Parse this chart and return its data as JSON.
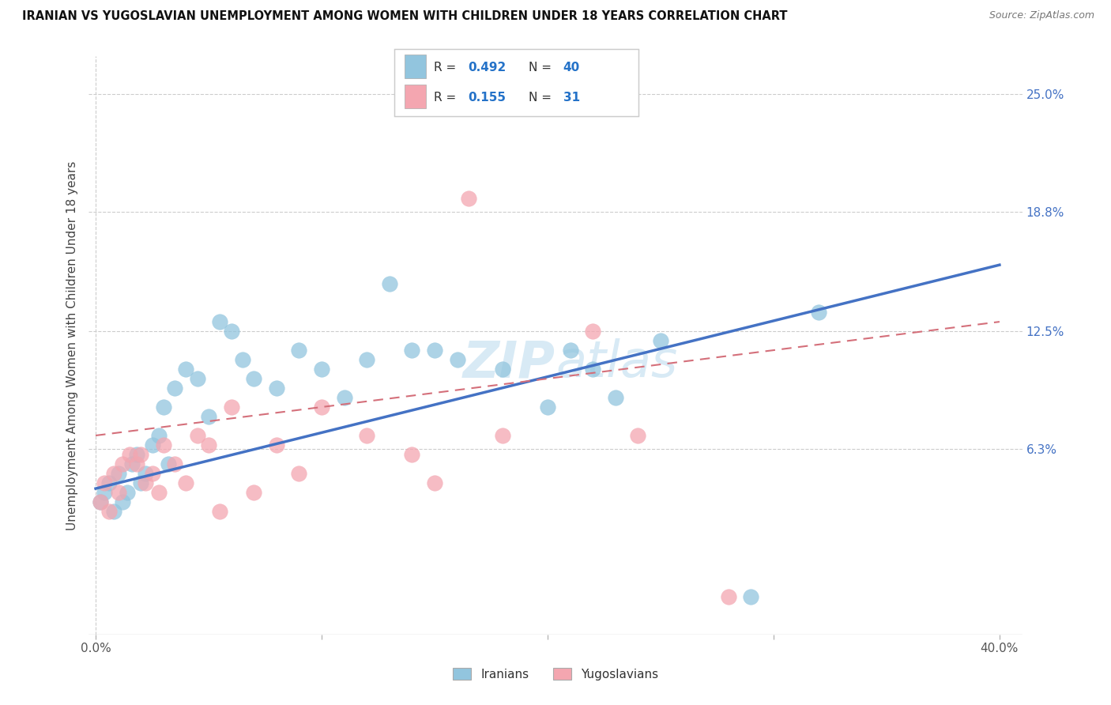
{
  "title": "IRANIAN VS YUGOSLAVIAN UNEMPLOYMENT AMONG WOMEN WITH CHILDREN UNDER 18 YEARS CORRELATION CHART",
  "source": "Source: ZipAtlas.com",
  "ylabel": "Unemployment Among Women with Children Under 18 years",
  "iranian_R": 0.492,
  "iranian_N": 40,
  "yugoslavian_R": 0.155,
  "yugoslavian_N": 31,
  "iranian_color": "#92C5DE",
  "yugoslavian_color": "#F4A6B0",
  "iranian_line_color": "#4472C4",
  "yugoslavian_line_color": "#D46F7A",
  "watermark_color": "#D8EAF5",
  "grid_color": "#CCCCCC",
  "ytick_color": "#4472C4",
  "x_ticks": [
    0,
    10,
    20,
    30,
    40
  ],
  "x_tick_labels": [
    "0.0%",
    "",
    "",
    "",
    "40.0%"
  ],
  "y_ticks": [
    6.3,
    12.5,
    18.8,
    25.0
  ],
  "y_tick_labels": [
    "6.3%",
    "12.5%",
    "18.8%",
    "25.0%"
  ],
  "xlim": [
    -0.3,
    41.0
  ],
  "ylim": [
    -3.5,
    27.0
  ],
  "iran_line_x0": 0.0,
  "iran_line_y0": 4.2,
  "iran_line_x1": 40.0,
  "iran_line_y1": 16.0,
  "yugo_line_x0": 0.0,
  "yugo_line_y0": 7.0,
  "yugo_line_x1": 40.0,
  "yugo_line_y1": 13.0,
  "iranians_x": [
    0.2,
    0.4,
    0.6,
    0.8,
    1.0,
    1.2,
    1.4,
    1.6,
    1.8,
    2.0,
    2.2,
    2.5,
    2.8,
    3.0,
    3.2,
    3.5,
    4.0,
    4.5,
    5.0,
    5.5,
    6.0,
    6.5,
    7.0,
    8.0,
    9.0,
    10.0,
    11.0,
    12.0,
    13.0,
    14.0,
    15.0,
    16.0,
    18.0,
    20.0,
    21.0,
    22.0,
    23.0,
    25.0,
    29.0,
    32.0
  ],
  "iranians_y": [
    3.5,
    4.0,
    4.5,
    3.0,
    5.0,
    3.5,
    4.0,
    5.5,
    6.0,
    4.5,
    5.0,
    6.5,
    7.0,
    8.5,
    5.5,
    9.5,
    10.5,
    10.0,
    8.0,
    13.0,
    12.5,
    11.0,
    10.0,
    9.5,
    11.5,
    10.5,
    9.0,
    11.0,
    15.0,
    11.5,
    11.5,
    11.0,
    10.5,
    8.5,
    11.5,
    10.5,
    9.0,
    12.0,
    -1.5,
    13.5
  ],
  "yugoslavians_x": [
    0.2,
    0.4,
    0.6,
    0.8,
    1.0,
    1.2,
    1.5,
    1.8,
    2.0,
    2.2,
    2.5,
    2.8,
    3.0,
    3.5,
    4.0,
    4.5,
    5.0,
    5.5,
    6.0,
    7.0,
    8.0,
    9.0,
    10.0,
    12.0,
    14.0,
    15.0,
    16.5,
    18.0,
    22.0,
    24.0,
    28.0
  ],
  "yugoslavians_y": [
    3.5,
    4.5,
    3.0,
    5.0,
    4.0,
    5.5,
    6.0,
    5.5,
    6.0,
    4.5,
    5.0,
    4.0,
    6.5,
    5.5,
    4.5,
    7.0,
    6.5,
    3.0,
    8.5,
    4.0,
    6.5,
    5.0,
    8.5,
    7.0,
    6.0,
    4.5,
    19.5,
    7.0,
    12.5,
    7.0,
    -1.5
  ]
}
